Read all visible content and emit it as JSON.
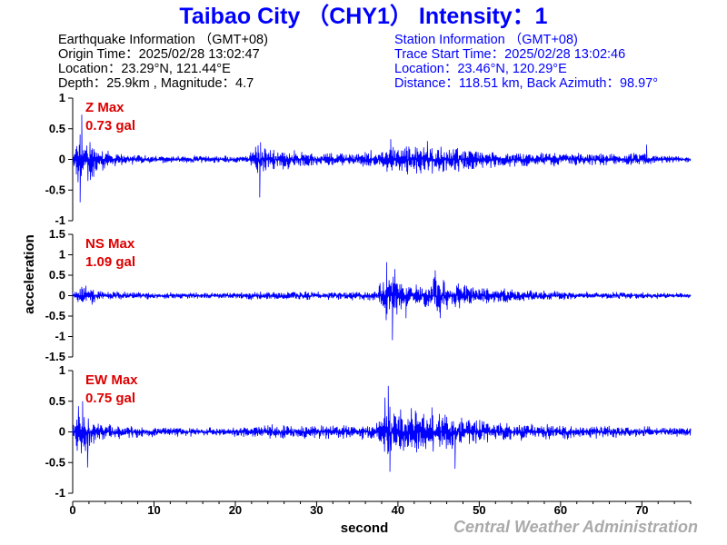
{
  "header": {
    "title": "Taibao City （CHY1） Intensity：1",
    "title_color": "#0000ff"
  },
  "earthquake_info": {
    "heading": "Earthquake Information （GMT+08)",
    "origin_time": "Origin Time：2025/02/28 13:02:47",
    "location": "Location：23.29°N, 121.44°E",
    "depth_magnitude": "Depth：25.9km , Magnitude：4.7",
    "color": "#000000"
  },
  "station_info": {
    "heading": "Station Information （GMT+08)",
    "trace_start": "Trace Start Time：2025/02/28 13:02:46",
    "location": "Location：23.46°N, 120.29°E",
    "distance_azimuth": "Distance：118.51 km, Back Azimuth：98.97°",
    "color": "#0000ff"
  },
  "footer": {
    "credit": "Central Weather Administration",
    "credit_color": "#aaaaaa"
  },
  "chart_data": {
    "type": "line",
    "xlabel": "second",
    "ylabel": "acceleration",
    "xlim": [
      0,
      76
    ],
    "x_ticks": [
      0,
      10,
      20,
      30,
      40,
      50,
      60,
      70
    ],
    "line_color": "#0000ff",
    "peak_label_color": "#dd0000",
    "panels": [
      {
        "component": "Z",
        "peak_label": "Z Max",
        "peak_value": "0.73 gal",
        "ylim": [
          -1,
          1
        ],
        "y_ticks": [
          1,
          0.5,
          0,
          -0.5,
          -1
        ],
        "y_tick_labels": [
          "1",
          "0.5",
          "0",
          "-0.5",
          "-1"
        ],
        "envelope": [
          [
            0,
            0.08
          ],
          [
            0.6,
            0.45
          ],
          [
            1.1,
            0.7
          ],
          [
            1.8,
            0.5
          ],
          [
            3,
            0.28
          ],
          [
            5,
            0.14
          ],
          [
            8,
            0.08
          ],
          [
            15,
            0.07
          ],
          [
            21.5,
            0.07
          ],
          [
            22.5,
            0.26
          ],
          [
            24,
            0.22
          ],
          [
            27,
            0.17
          ],
          [
            30,
            0.12
          ],
          [
            34,
            0.12
          ],
          [
            38,
            0.2
          ],
          [
            40,
            0.28
          ],
          [
            44,
            0.26
          ],
          [
            48,
            0.22
          ],
          [
            52,
            0.15
          ],
          [
            56,
            0.13
          ],
          [
            62,
            0.12
          ],
          [
            68,
            0.1
          ],
          [
            70.5,
            0.15
          ],
          [
            72,
            0.08
          ],
          [
            76,
            0.07
          ]
        ],
        "spikes": [
          [
            1.1,
            0.73
          ],
          [
            0.9,
            -0.7
          ],
          [
            23,
            -0.62
          ],
          [
            23.1,
            0.28
          ],
          [
            39.1,
            0.33
          ],
          [
            43.6,
            0.3
          ],
          [
            70.6,
            0.24
          ]
        ]
      },
      {
        "component": "NS",
        "peak_label": "NS Max",
        "peak_value": "1.09 gal",
        "ylim": [
          -1.5,
          1.5
        ],
        "y_ticks": [
          1.5,
          1,
          0.5,
          0,
          -0.5,
          -1,
          -1.5
        ],
        "y_tick_labels": [
          "1.5",
          "1",
          "0.5",
          "0",
          "-0.5",
          "-1",
          "-1.5"
        ],
        "envelope": [
          [
            0,
            0.1
          ],
          [
            1.2,
            0.32
          ],
          [
            2,
            0.25
          ],
          [
            4,
            0.12
          ],
          [
            10,
            0.09
          ],
          [
            20,
            0.09
          ],
          [
            23,
            0.13
          ],
          [
            28,
            0.12
          ],
          [
            33,
            0.11
          ],
          [
            37.5,
            0.14
          ],
          [
            38.5,
            0.75
          ],
          [
            39.5,
            0.6
          ],
          [
            41,
            0.35
          ],
          [
            43,
            0.28
          ],
          [
            44.5,
            0.6
          ],
          [
            46.5,
            0.38
          ],
          [
            50,
            0.25
          ],
          [
            55,
            0.17
          ],
          [
            62,
            0.11
          ],
          [
            70,
            0.09
          ],
          [
            76,
            0.07
          ]
        ],
        "spikes": [
          [
            38.6,
            0.82
          ],
          [
            39.3,
            -1.09
          ],
          [
            39.6,
            0.65
          ],
          [
            44.6,
            0.62
          ],
          [
            45.2,
            -0.55
          ],
          [
            41,
            -0.55
          ]
        ]
      },
      {
        "component": "EW",
        "peak_label": "EW Max",
        "peak_value": "0.75 gal",
        "ylim": [
          -1,
          1
        ],
        "y_ticks": [
          1,
          0.5,
          0,
          -0.5,
          -1
        ],
        "y_tick_labels": [
          "1",
          "0.5",
          "0",
          "-0.5",
          "-1"
        ],
        "envelope": [
          [
            0,
            0.12
          ],
          [
            0.7,
            0.45
          ],
          [
            1.4,
            0.5
          ],
          [
            2.3,
            0.3
          ],
          [
            4,
            0.16
          ],
          [
            8,
            0.11
          ],
          [
            15,
            0.08
          ],
          [
            20,
            0.09
          ],
          [
            23,
            0.13
          ],
          [
            28,
            0.13
          ],
          [
            33,
            0.12
          ],
          [
            37.5,
            0.17
          ],
          [
            38.5,
            0.62
          ],
          [
            39.5,
            0.55
          ],
          [
            41,
            0.42
          ],
          [
            43,
            0.4
          ],
          [
            45,
            0.38
          ],
          [
            47,
            0.3
          ],
          [
            50,
            0.22
          ],
          [
            55,
            0.16
          ],
          [
            62,
            0.12
          ],
          [
            70,
            0.1
          ],
          [
            76,
            0.08
          ]
        ],
        "spikes": [
          [
            38.8,
            0.75
          ],
          [
            39,
            -0.65
          ],
          [
            1.2,
            0.5
          ],
          [
            1.8,
            -0.58
          ],
          [
            44.2,
            0.4
          ],
          [
            47,
            -0.6
          ]
        ]
      }
    ]
  }
}
